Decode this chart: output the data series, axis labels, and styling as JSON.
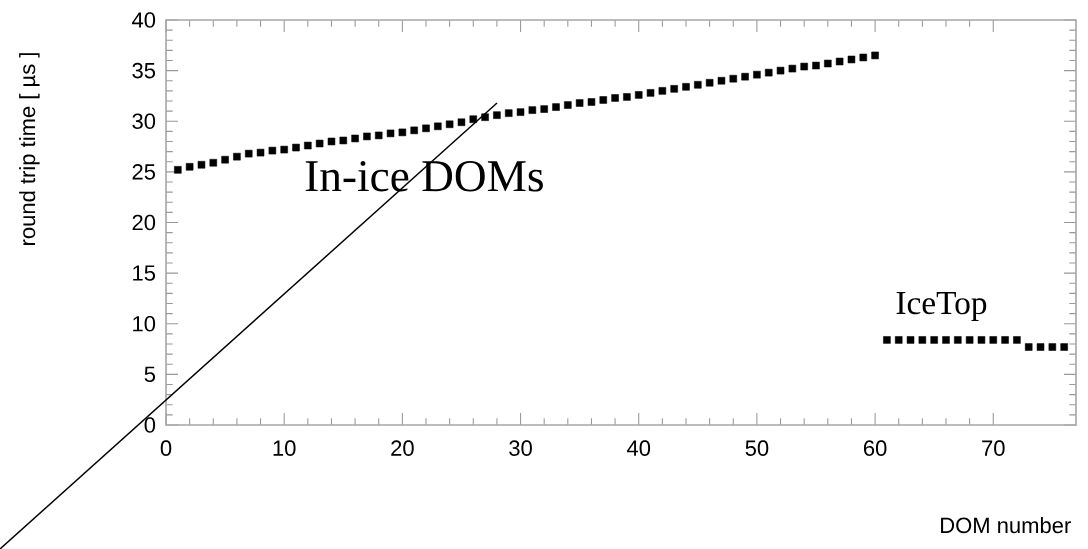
{
  "chart_data": {
    "type": "scatter",
    "xlabel": "DOM number",
    "ylabel": "round trip time [ µs ]",
    "marker": "square",
    "grid": false,
    "xlim": [
      0,
      77
    ],
    "ylim": [
      0,
      40
    ],
    "xticks": [
      0,
      10,
      20,
      30,
      40,
      50,
      60,
      70
    ],
    "yticks": [
      0,
      5,
      10,
      15,
      20,
      25,
      30,
      35,
      40
    ],
    "series": [
      {
        "name": "In-ice DOMs",
        "color": "#000000",
        "x": [
          1,
          2,
          3,
          4,
          5,
          6,
          7,
          8,
          9,
          10,
          11,
          12,
          13,
          14,
          15,
          16,
          17,
          18,
          19,
          20,
          21,
          22,
          23,
          24,
          25,
          26,
          27,
          28,
          29,
          30,
          31,
          32,
          33,
          34,
          35,
          36,
          37,
          38,
          39,
          40,
          41,
          42,
          43,
          44,
          45,
          46,
          47,
          48,
          49,
          50,
          51,
          52,
          53,
          54,
          55,
          56,
          57,
          58,
          59,
          60
        ],
        "values": [
          25.2,
          25.5,
          25.7,
          25.9,
          26.2,
          26.5,
          26.8,
          26.9,
          27.1,
          27.2,
          27.4,
          27.6,
          27.8,
          28.0,
          28.1,
          28.3,
          28.5,
          28.6,
          28.8,
          28.9,
          29.1,
          29.3,
          29.5,
          29.7,
          29.9,
          30.2,
          30.4,
          30.6,
          30.8,
          30.9,
          31.1,
          31.2,
          31.4,
          31.6,
          31.8,
          31.9,
          32.1,
          32.3,
          32.4,
          32.6,
          32.8,
          33.0,
          33.2,
          33.4,
          33.6,
          33.8,
          34.0,
          34.2,
          34.4,
          34.6,
          34.8,
          35.0,
          35.2,
          35.4,
          35.5,
          35.7,
          35.9,
          36.1,
          36.3,
          36.5
        ]
      },
      {
        "name": "IceTop",
        "color": "#000000",
        "x": [
          61,
          62,
          63,
          64,
          65,
          66,
          67,
          68,
          69,
          70,
          71,
          72,
          73,
          74,
          75,
          76
        ],
        "values": [
          8.4,
          8.4,
          8.4,
          8.4,
          8.4,
          8.4,
          8.4,
          8.4,
          8.4,
          8.4,
          8.4,
          8.4,
          7.7,
          7.7,
          7.7,
          7.7
        ]
      }
    ]
  }
}
